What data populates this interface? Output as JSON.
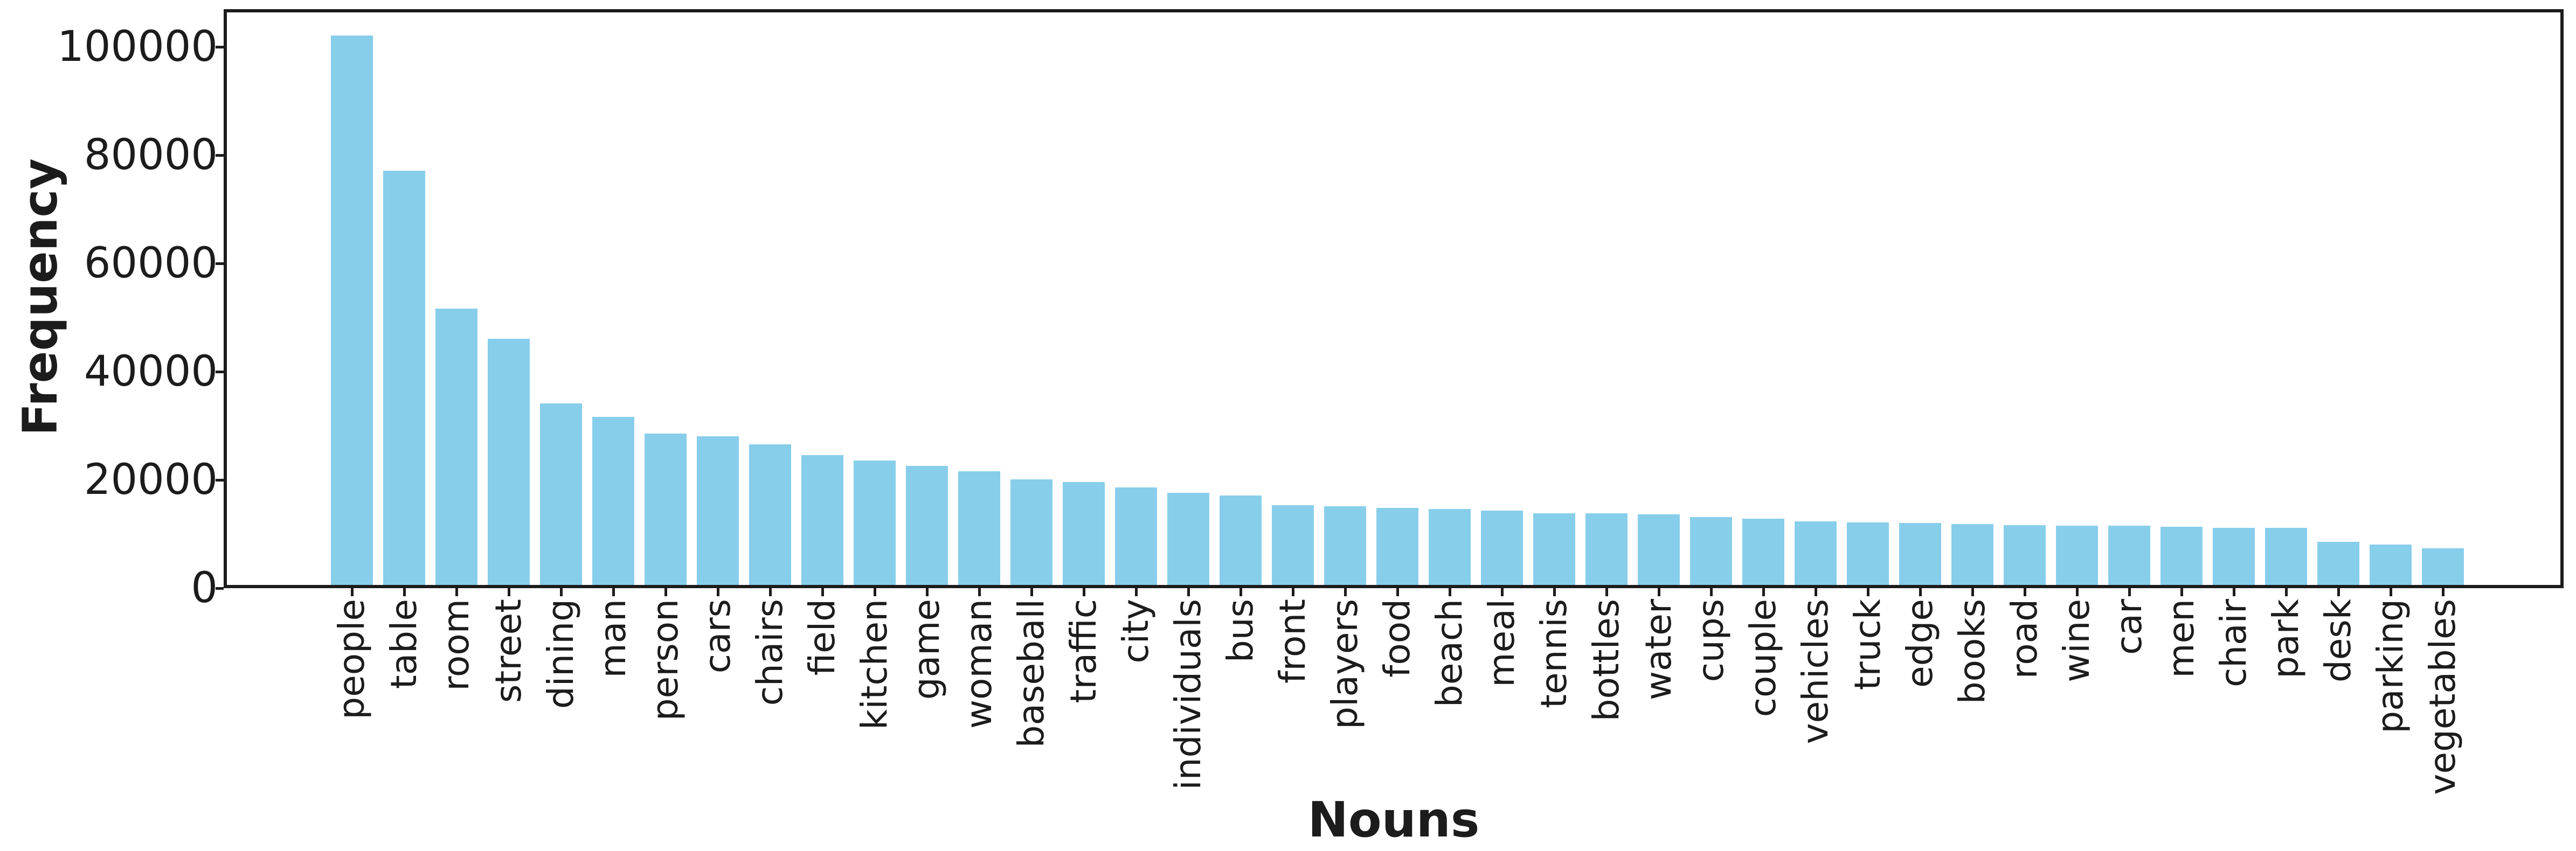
{
  "chart_data": {
    "type": "bar",
    "title": "",
    "xlabel": "Nouns",
    "ylabel": "Frequency",
    "categories": [
      "people",
      "table",
      "room",
      "street",
      "dining",
      "man",
      "person",
      "cars",
      "chairs",
      "field",
      "kitchen",
      "game",
      "woman",
      "baseball",
      "traffic",
      "city",
      "individuals",
      "bus",
      "front",
      "players",
      "food",
      "beach",
      "meal",
      "tennis",
      "bottles",
      "water",
      "cups",
      "couple",
      "vehicles",
      "truck",
      "edge",
      "books",
      "road",
      "wine",
      "car",
      "men",
      "chair",
      "park",
      "desk",
      "parking",
      "vegetables"
    ],
    "values": [
      101500,
      76500,
      51000,
      45500,
      33500,
      31000,
      28000,
      27500,
      26000,
      24000,
      23000,
      22000,
      21000,
      19500,
      19000,
      18000,
      17000,
      16500,
      14750,
      14500,
      14250,
      14000,
      13750,
      13250,
      13250,
      13000,
      12500,
      12250,
      11750,
      11500,
      11400,
      11200,
      11000,
      10900,
      10900,
      10700,
      10500,
      10500,
      8000,
      7500,
      6800
    ],
    "ytick_values": [
      0,
      20000,
      40000,
      60000,
      80000,
      100000
    ],
    "ytick_labels": [
      "0",
      "20000",
      "40000",
      "60000",
      "80000",
      "100000"
    ],
    "ylim": [
      0,
      106900
    ],
    "x_tick_rotation_degrees": 90,
    "grid": false,
    "legend": false,
    "bar_color": "#87CEEB",
    "axis_color": "#1c1c1c",
    "background_color": "#ffffff"
  }
}
